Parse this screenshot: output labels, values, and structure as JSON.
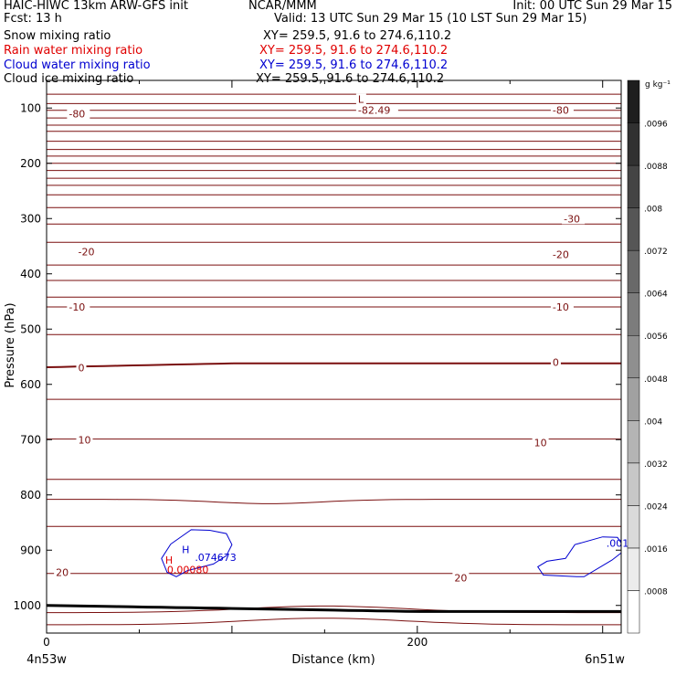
{
  "header": {
    "line1_left": "HAIC-HIWC 13km ARW-GFS init",
    "line1_mid": "NCAR/MMM",
    "line1_right": "Init: 00 UTC Sun 29 Mar 15",
    "line2_left": "Fcst:    13 h",
    "line2_right": "Valid: 13 UTC Sun 29 Mar 15 (10 LST Sun 29 Mar 15)"
  },
  "legend": [
    {
      "label": "Snow mixing ratio",
      "xy": "XY= 259.5, 91.6 to 274.6,110.2",
      "color": "#000000"
    },
    {
      "label": "Rain water mixing ratio",
      "xy": "XY= 259.5, 91.6 to 274.6,110.2",
      "color": "#e00000"
    },
    {
      "label": "Cloud water mixing ratio",
      "xy": "XY= 259.5, 91.6 to 274.6,110.2",
      "color": "#0000d0"
    },
    {
      "label": "Cloud ice mixing ratio",
      "xy": "XY= 259.5, 91.6 to 274.6,110.2",
      "color": "#000000"
    }
  ],
  "colors": {
    "temperature": "#7a0f0f",
    "cloud_water": "#0000d0",
    "rain": "#e00000",
    "terrain": "#000000"
  },
  "chart_data": {
    "type": "cross-section contour",
    "xlabel": "Distance (km)",
    "ylabel": "Pressure (hPa)",
    "x_ticks": [
      0,
      200
    ],
    "xlim": [
      0,
      310
    ],
    "y_ticks": [
      100,
      200,
      300,
      400,
      500,
      600,
      700,
      800,
      900,
      1000
    ],
    "ylim": [
      50,
      1050
    ],
    "left_end_label": "4n53w",
    "right_end_label": "6n51w",
    "colorbar": {
      "unit": "g kg⁻¹",
      "ticks": [
        ".0096",
        ".0088",
        ".008",
        ".0072",
        ".0064",
        ".0056",
        ".0048",
        ".004",
        ".0032",
        ".0024",
        ".0016",
        ".0008"
      ],
      "levels": [
        0.0008,
        0.0016,
        0.0024,
        0.0032,
        0.004,
        0.0048,
        0.0056,
        0.0064,
        0.0072,
        0.008,
        0.0088,
        0.0096,
        0.0104
      ]
    },
    "temperature_contour_pressures": [
      75,
      92,
      104,
      118,
      131,
      142,
      160,
      175,
      187,
      200,
      213,
      227,
      240,
      257,
      280,
      310,
      343,
      384,
      412,
      442,
      460,
      510,
      565,
      627,
      699,
      772,
      808,
      857,
      942,
      1013,
      1035
    ],
    "contour_labels": [
      {
        "text": "-80",
        "x": 12,
        "p": 110
      },
      {
        "text": "-82.49",
        "x": 168,
        "p": 104
      },
      {
        "text": "L",
        "x": 168,
        "p": 84
      },
      {
        "text": "-80",
        "x": 273,
        "p": 104
      },
      {
        "text": "-30",
        "x": 279,
        "p": 300
      },
      {
        "text": "-20",
        "x": 17,
        "p": 360
      },
      {
        "text": "-20",
        "x": 273,
        "p": 365
      },
      {
        "text": "-10",
        "x": 12,
        "p": 460
      },
      {
        "text": "-10",
        "x": 273,
        "p": 460
      },
      {
        "text": "0",
        "x": 17,
        "p": 570
      },
      {
        "text": "0",
        "x": 273,
        "p": 560
      },
      {
        "text": "10",
        "x": 17,
        "p": 700
      },
      {
        "text": "10",
        "x": 263,
        "p": 705
      },
      {
        "text": "20",
        "x": 5,
        "p": 940
      },
      {
        "text": "20",
        "x": 220,
        "p": 950
      }
    ],
    "cloud_water_annotations": [
      {
        "text": "H",
        "x": 73,
        "p": 899,
        "color": "#0000d0"
      },
      {
        "text": ".074673",
        "x": 80,
        "p": 913,
        "color": "#0000d0"
      },
      {
        "text": "H",
        "x": 64,
        "p": 918,
        "color": "#e00000"
      },
      {
        "text": "0.00080",
        "x": 65,
        "p": 935,
        "color": "#e00000"
      },
      {
        "text": ".001",
        "x": 302,
        "p": 887,
        "color": "#0000d0"
      }
    ],
    "cloud_water_contours": [
      [
        [
          67,
          889
        ],
        [
          78,
          863
        ],
        [
          88,
          864
        ],
        [
          97,
          870
        ],
        [
          100,
          890
        ],
        [
          97,
          910
        ],
        [
          90,
          925
        ],
        [
          76,
          937
        ],
        [
          70,
          948
        ],
        [
          65,
          940
        ],
        [
          62,
          915
        ],
        [
          67,
          889
        ]
      ],
      [
        [
          300,
          876
        ],
        [
          308,
          877
        ],
        [
          310,
          887
        ],
        [
          310,
          905
        ],
        [
          305,
          918
        ],
        [
          290,
          948
        ],
        [
          286,
          948
        ],
        [
          268,
          945
        ],
        [
          265,
          930
        ],
        [
          270,
          920
        ],
        [
          280,
          915
        ],
        [
          285,
          890
        ],
        [
          300,
          876
        ]
      ]
    ]
  }
}
